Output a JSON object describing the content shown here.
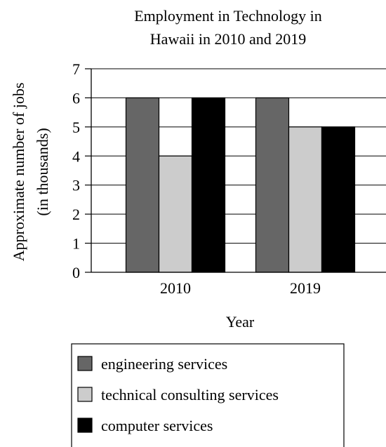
{
  "chart_data": {
    "type": "bar",
    "title_lines": [
      "Employment in Technology in",
      "Hawaii in 2010 and 2019"
    ],
    "xlabel": "Year",
    "ylabel_lines": [
      "Approximate number of jobs",
      "(in thousands)"
    ],
    "categories": [
      "2010",
      "2019"
    ],
    "series": [
      {
        "name": "engineering services",
        "values": [
          6,
          6
        ],
        "color": "#666666"
      },
      {
        "name": "technical consulting services",
        "values": [
          4,
          5
        ],
        "color": "#cccccc"
      },
      {
        "name": "computer services",
        "values": [
          6,
          5
        ],
        "color": "#000000"
      }
    ],
    "ylim": [
      0,
      7
    ],
    "yticks": [
      0,
      1,
      2,
      3,
      4,
      5,
      6,
      7
    ],
    "grid": true,
    "legend_position": "bottom"
  }
}
